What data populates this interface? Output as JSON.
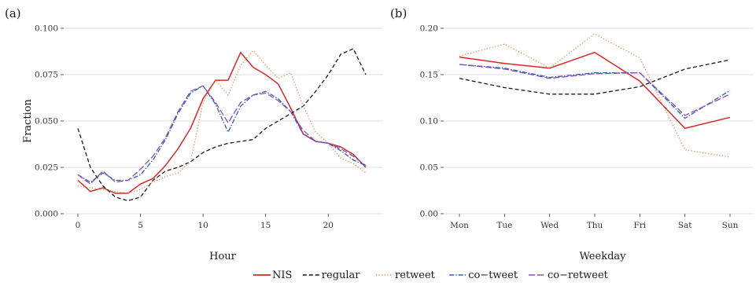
{
  "colors": {
    "NIS": "#d62728",
    "regular": "#1a1a1a",
    "retweet": "#e8834a",
    "co-tweet": "#2f5fa8",
    "co-retweet": "#8a4fb8",
    "grid": "#d4d4d4"
  },
  "legend": {
    "position": "bottom-center",
    "items": [
      {
        "key": "NIS",
        "label": "NIS",
        "dash": "solid"
      },
      {
        "key": "regular",
        "label": "regular",
        "dash": "dashed"
      },
      {
        "key": "retweet",
        "label": "retweet",
        "dash": "dotted"
      },
      {
        "key": "co-tweet",
        "label": "co−tweet",
        "dash": "dotdash"
      },
      {
        "key": "co-retweet",
        "label": "co−retweet",
        "dash": "longdash"
      }
    ]
  },
  "chart_data": [
    {
      "panel_label": "(a)",
      "type": "line",
      "xlabel": "Hour",
      "ylabel": "Fraction",
      "xlim": [
        0,
        23
      ],
      "ylim": [
        0,
        0.1
      ],
      "xticks": [
        0,
        5,
        10,
        15,
        20
      ],
      "yticks": [
        0,
        0.025,
        0.05,
        0.075,
        0.1
      ],
      "ytick_labels": [
        "0.000",
        "0.025",
        "0.050",
        "0.075",
        "0.100"
      ],
      "grid": "horizontal",
      "x": [
        0,
        1,
        2,
        3,
        4,
        5,
        6,
        7,
        8,
        9,
        10,
        11,
        12,
        13,
        14,
        15,
        16,
        17,
        18,
        19,
        20,
        21,
        22,
        23
      ],
      "series": [
        {
          "name": "NIS",
          "values": [
            0.018,
            0.012,
            0.014,
            0.011,
            0.011,
            0.016,
            0.019,
            0.026,
            0.035,
            0.046,
            0.062,
            0.072,
            0.072,
            0.087,
            0.079,
            0.075,
            0.07,
            0.057,
            0.043,
            0.039,
            0.038,
            0.036,
            0.032,
            0.025
          ]
        },
        {
          "name": "regular",
          "values": [
            0.046,
            0.025,
            0.015,
            0.009,
            0.007,
            0.009,
            0.018,
            0.023,
            0.025,
            0.028,
            0.033,
            0.036,
            0.038,
            0.039,
            0.04,
            0.046,
            0.05,
            0.054,
            0.058,
            0.066,
            0.075,
            0.086,
            0.089,
            0.075
          ]
        },
        {
          "name": "retweet",
          "values": [
            0.015,
            0.014,
            0.013,
            0.012,
            0.011,
            0.013,
            0.017,
            0.02,
            0.022,
            0.028,
            0.06,
            0.072,
            0.064,
            0.08,
            0.088,
            0.08,
            0.073,
            0.076,
            0.058,
            0.044,
            0.038,
            0.03,
            0.027,
            0.022
          ]
        },
        {
          "name": "co-tweet",
          "values": [
            0.021,
            0.017,
            0.022,
            0.018,
            0.018,
            0.021,
            0.029,
            0.04,
            0.054,
            0.065,
            0.069,
            0.059,
            0.044,
            0.058,
            0.064,
            0.066,
            0.062,
            0.055,
            0.043,
            0.039,
            0.038,
            0.034,
            0.029,
            0.026
          ]
        },
        {
          "name": "co-retweet",
          "values": [
            0.021,
            0.016,
            0.023,
            0.017,
            0.018,
            0.024,
            0.031,
            0.041,
            0.055,
            0.066,
            0.069,
            0.06,
            0.049,
            0.06,
            0.064,
            0.065,
            0.061,
            0.055,
            0.045,
            0.039,
            0.038,
            0.035,
            0.031,
            0.026
          ]
        }
      ]
    },
    {
      "panel_label": "(b)",
      "type": "line",
      "xlabel": "Weekday",
      "ylabel": "",
      "categories": [
        "Mon",
        "Tue",
        "Wed",
        "Thu",
        "Fri",
        "Sat",
        "Sun"
      ],
      "ylim": [
        0,
        0.2
      ],
      "yticks": [
        0,
        0.05,
        0.1,
        0.15,
        0.2
      ],
      "ytick_labels": [
        "0.00",
        "0.05",
        "0.10",
        "0.15",
        "0.20"
      ],
      "grid": "horizontal",
      "series": [
        {
          "name": "NIS",
          "values": [
            0.169,
            0.162,
            0.157,
            0.174,
            0.143,
            0.092,
            0.104
          ]
        },
        {
          "name": "regular",
          "values": [
            0.146,
            0.136,
            0.129,
            0.129,
            0.137,
            0.156,
            0.166
          ]
        },
        {
          "name": "retweet",
          "values": [
            0.17,
            0.183,
            0.157,
            0.194,
            0.168,
            0.069,
            0.061
          ]
        },
        {
          "name": "co-tweet",
          "values": [
            0.161,
            0.157,
            0.147,
            0.152,
            0.152,
            0.103,
            0.133
          ]
        },
        {
          "name": "co-retweet",
          "values": [
            0.161,
            0.156,
            0.146,
            0.151,
            0.152,
            0.106,
            0.129
          ]
        }
      ]
    }
  ]
}
